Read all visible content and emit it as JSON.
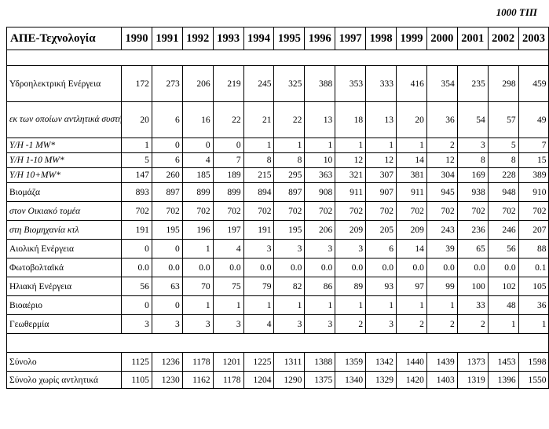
{
  "unit_label": "1000 ΤΙΠ",
  "header": {
    "label": "ΑΠΕ-Τεχνολογία",
    "years": [
      "1990",
      "1991",
      "1992",
      "1993",
      "1994",
      "1995",
      "1996",
      "1997",
      "1998",
      "1999",
      "2000",
      "2001",
      "2002",
      "2003"
    ]
  },
  "rows": [
    {
      "label": "Υδροηλεκτρική Ενέργεια",
      "values": [
        "172",
        "273",
        "206",
        "219",
        "245",
        "325",
        "388",
        "353",
        "333",
        "416",
        "354",
        "235",
        "298",
        "459"
      ]
    },
    {
      "label": "εκ των οποίων αντλητικά συστήματα",
      "values": [
        "20",
        "6",
        "16",
        "22",
        "21",
        "22",
        "13",
        "18",
        "13",
        "20",
        "36",
        "54",
        "57",
        "49"
      ]
    },
    {
      "label": "Υ/Η -1 MW*",
      "values": [
        "1",
        "0",
        "0",
        "0",
        "1",
        "1",
        "1",
        "1",
        "1",
        "1",
        "2",
        "3",
        "5",
        "7"
      ]
    },
    {
      "label": "Υ/Η 1-10 MW*",
      "values": [
        "5",
        "6",
        "4",
        "7",
        "8",
        "8",
        "10",
        "12",
        "12",
        "14",
        "12",
        "8",
        "8",
        "15"
      ]
    },
    {
      "label": "Υ/Η 10+MW*",
      "values": [
        "147",
        "260",
        "185",
        "189",
        "215",
        "295",
        "363",
        "321",
        "307",
        "381",
        "304",
        "169",
        "228",
        "389"
      ]
    },
    {
      "label": "Βιομάζα",
      "values": [
        "893",
        "897",
        "899",
        "899",
        "894",
        "897",
        "908",
        "911",
        "907",
        "911",
        "945",
        "938",
        "948",
        "910"
      ]
    },
    {
      "label": "στον Οικιακό τομέα",
      "values": [
        "702",
        "702",
        "702",
        "702",
        "702",
        "702",
        "702",
        "702",
        "702",
        "702",
        "702",
        "702",
        "702",
        "702"
      ]
    },
    {
      "label": "στη Βιομηχανία κτλ",
      "values": [
        "191",
        "195",
        "196",
        "197",
        "191",
        "195",
        "206",
        "209",
        "205",
        "209",
        "243",
        "236",
        "246",
        "207"
      ]
    },
    {
      "label": "Αιολική Ενέργεια",
      "values": [
        "0",
        "0",
        "1",
        "4",
        "3",
        "3",
        "3",
        "3",
        "6",
        "14",
        "39",
        "65",
        "56",
        "88"
      ]
    },
    {
      "label": "Φωτοβολταϊκά",
      "values": [
        "0.0",
        "0.0",
        "0.0",
        "0.0",
        "0.0",
        "0.0",
        "0.0",
        "0.0",
        "0.0",
        "0.0",
        "0.0",
        "0.0",
        "0.0",
        "0.1"
      ]
    },
    {
      "label": "Ηλιακή Ενέργεια",
      "values": [
        "56",
        "63",
        "70",
        "75",
        "79",
        "82",
        "86",
        "89",
        "93",
        "97",
        "99",
        "100",
        "102",
        "105"
      ]
    },
    {
      "label": "Βιοαέριο",
      "values": [
        "0",
        "0",
        "1",
        "1",
        "1",
        "1",
        "1",
        "1",
        "1",
        "1",
        "1",
        "33",
        "48",
        "36"
      ]
    },
    {
      "label": "Γεωθερμία",
      "values": [
        "3",
        "3",
        "3",
        "3",
        "4",
        "3",
        "3",
        "2",
        "3",
        "2",
        "2",
        "2",
        "1",
        "1"
      ]
    }
  ],
  "totals": [
    {
      "label": "Σύνολο",
      "values": [
        "1125",
        "1236",
        "1178",
        "1201",
        "1225",
        "1311",
        "1388",
        "1359",
        "1342",
        "1440",
        "1439",
        "1373",
        "1453",
        "1598"
      ]
    },
    {
      "label": "Σύνολο χωρίς αντλητικά",
      "values": [
        "1105",
        "1230",
        "1162",
        "1178",
        "1204",
        "1290",
        "1375",
        "1340",
        "1329",
        "1420",
        "1403",
        "1319",
        "1396",
        "1550"
      ]
    }
  ]
}
